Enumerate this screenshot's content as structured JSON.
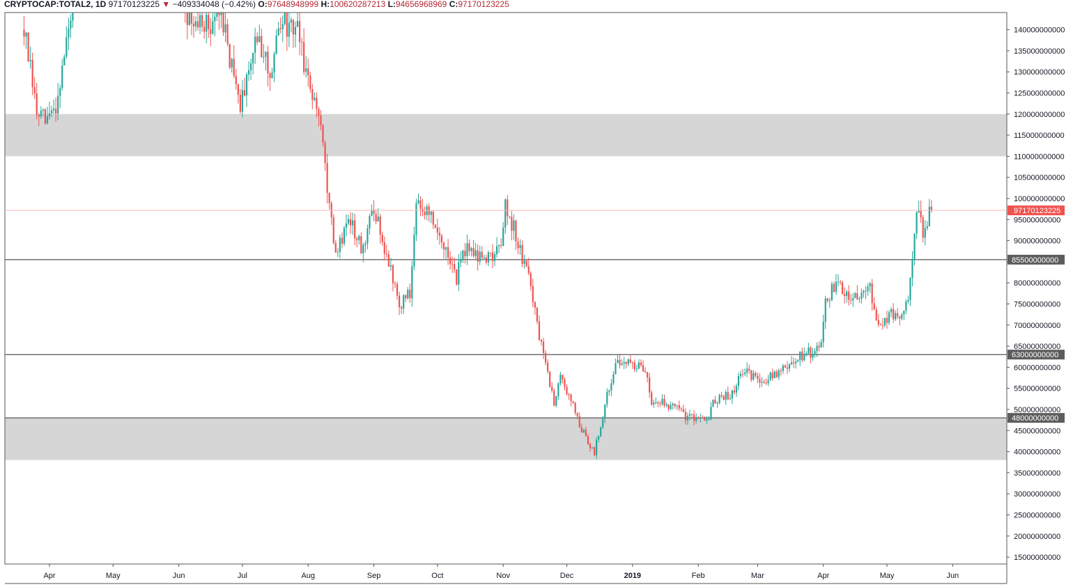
{
  "header": {
    "symbol": "CRYPTOCAP:TOTAL2, 1D",
    "last": "97170123225",
    "arrow": "▼",
    "change": "−409334048 (−0.42%)",
    "open_label": "O:",
    "open": "97648948999",
    "high_label": "H:",
    "high": "100620287213",
    "low_label": "L:",
    "low": "94656968969",
    "close_label": "C:",
    "close": "97170123225"
  },
  "colors": {
    "up": "#26a69a",
    "down": "#ef5350",
    "zone": "#d6d6d6",
    "level_line": "#555555",
    "level_label_bg": "#5d5d5d",
    "price_line": "#f6b7b7",
    "price_label_bg": "#ef5350"
  },
  "chart_data": {
    "type": "candlestick",
    "title": "",
    "xlabel": "",
    "ylabel": "",
    "ylim": [
      10000000000,
      145000000000
    ],
    "x_ticks": [
      "Apr",
      "May",
      "Jun",
      "Jul",
      "Aug",
      "Sep",
      "Oct",
      "Nov",
      "Dec",
      "2019",
      "Feb",
      "Mar",
      "Apr",
      "May",
      "Jun"
    ],
    "y_ticks": [
      15000000000,
      20000000000,
      25000000000,
      30000000000,
      35000000000,
      40000000000,
      45000000000,
      50000000000,
      55000000000,
      60000000000,
      65000000000,
      70000000000,
      75000000000,
      80000000000,
      85000000000,
      90000000000,
      95000000000,
      100000000000,
      105000000000,
      110000000000,
      115000000000,
      120000000000,
      125000000000,
      130000000000,
      135000000000,
      140000000000
    ],
    "zones": [
      {
        "low": 110000000000,
        "high": 120000000000
      },
      {
        "low": 38000000000,
        "high": 48000000000
      }
    ],
    "levels": [
      {
        "value": 85500000000,
        "label": "85500000000"
      },
      {
        "value": 63000000000,
        "label": "63000000000"
      },
      {
        "value": 48000000000,
        "label": "48000000000"
      }
    ],
    "last_price": {
      "value": 97170123225,
      "label": "97170123225"
    },
    "anchors": [
      [
        "2018-03-20",
        140
      ],
      [
        "2018-03-26",
        120
      ],
      [
        "2018-03-30",
        118
      ],
      [
        "2018-04-04",
        122
      ],
      [
        "2018-04-11",
        143
      ],
      [
        "2018-06-05",
        143
      ],
      [
        "2018-06-22",
        141
      ],
      [
        "2018-06-30",
        122
      ],
      [
        "2018-07-07",
        138
      ],
      [
        "2018-07-14",
        130
      ],
      [
        "2018-07-20",
        142
      ],
      [
        "2018-07-27",
        140
      ],
      [
        "2018-08-02",
        126
      ],
      [
        "2018-08-08",
        114
      ],
      [
        "2018-08-11",
        98
      ],
      [
        "2018-08-14",
        86
      ],
      [
        "2018-08-20",
        96
      ],
      [
        "2018-08-26",
        88
      ],
      [
        "2018-09-01",
        98
      ],
      [
        "2018-09-08",
        85
      ],
      [
        "2018-09-13",
        74
      ],
      [
        "2018-09-18",
        78
      ],
      [
        "2018-09-21",
        100
      ],
      [
        "2018-09-30",
        95
      ],
      [
        "2018-10-10",
        81
      ],
      [
        "2018-10-13",
        88
      ],
      [
        "2018-10-24",
        86
      ],
      [
        "2018-10-31",
        88
      ],
      [
        "2018-11-02",
        98
      ],
      [
        "2018-11-06",
        93
      ],
      [
        "2018-11-12",
        83
      ],
      [
        "2018-11-15",
        77
      ],
      [
        "2018-11-20",
        62
      ],
      [
        "2018-11-25",
        52
      ],
      [
        "2018-11-28",
        57
      ],
      [
        "2018-12-03",
        52
      ],
      [
        "2018-12-07",
        46
      ],
      [
        "2018-12-14",
        40
      ],
      [
        "2018-12-18",
        49
      ],
      [
        "2018-12-24",
        61
      ],
      [
        "2019-01-07",
        60
      ],
      [
        "2019-01-10",
        52
      ],
      [
        "2019-01-20",
        51
      ],
      [
        "2019-01-27",
        48
      ],
      [
        "2019-02-06",
        47
      ],
      [
        "2019-02-08",
        52
      ],
      [
        "2019-02-17",
        54
      ],
      [
        "2019-02-24",
        61
      ],
      [
        "2019-02-26",
        58
      ],
      [
        "2019-03-05",
        57
      ],
      [
        "2019-03-15",
        61
      ],
      [
        "2019-03-24",
        63
      ],
      [
        "2019-03-31",
        65
      ],
      [
        "2019-04-02",
        76
      ],
      [
        "2019-04-08",
        80
      ],
      [
        "2019-04-13",
        76
      ],
      [
        "2019-04-23",
        79
      ],
      [
        "2019-04-27",
        70
      ],
      [
        "2019-05-01",
        72
      ],
      [
        "2019-05-08",
        73
      ],
      [
        "2019-05-11",
        77
      ],
      [
        "2019-05-14",
        91
      ],
      [
        "2019-05-16",
        99
      ],
      [
        "2019-05-18",
        90
      ],
      [
        "2019-05-21",
        98
      ],
      [
        "2019-05-22",
        97.17
      ]
    ]
  }
}
